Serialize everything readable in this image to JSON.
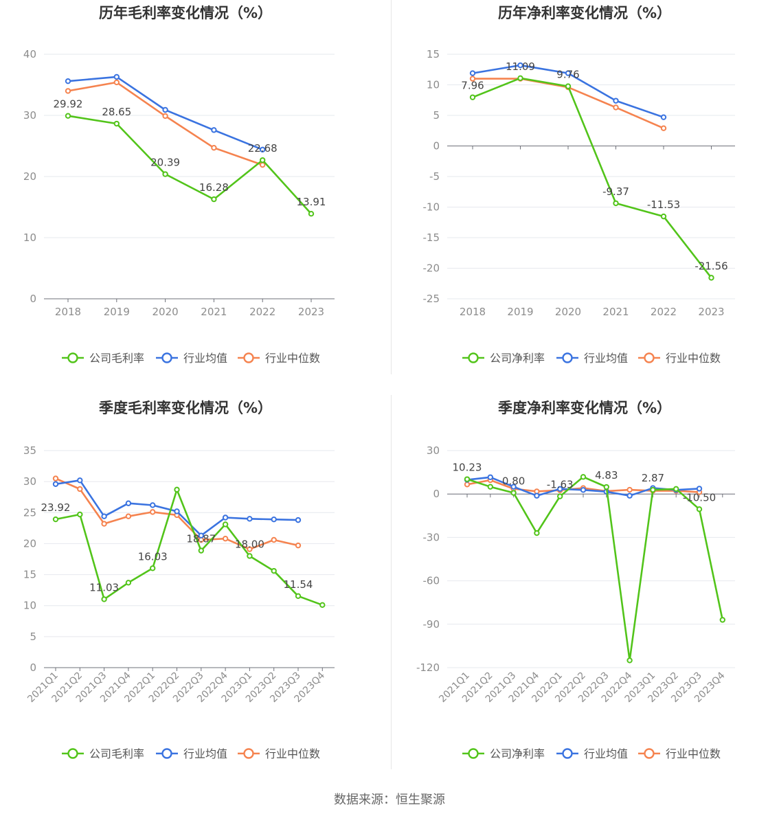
{
  "footer": {
    "source": "数据来源：恒生聚源"
  },
  "colors": {
    "company": "#52c41a",
    "avg": "#3a73e0",
    "median": "#f5834f",
    "axis": "#8c8c8c",
    "grid": "#e6e8ee",
    "title": "#333333"
  },
  "chart_data": [
    {
      "type": "line",
      "title": "历年毛利率变化情况（%）",
      "categories": [
        "2018",
        "2019",
        "2020",
        "2021",
        "2022",
        "2023"
      ],
      "ylim": [
        0,
        40
      ],
      "yticks": [
        0,
        10,
        20,
        30,
        40
      ],
      "legend": [
        "公司毛利率",
        "行业均值",
        "行业中位数"
      ],
      "legend_position": "bottom",
      "series": [
        {
          "name": "公司毛利率",
          "values": [
            29.92,
            28.65,
            20.39,
            16.28,
            22.68,
            13.91
          ],
          "labels": [
            "29.92",
            "28.65",
            "20.39",
            "16.28",
            "22.68",
            "13.91"
          ]
        },
        {
          "name": "行业均值",
          "values": [
            35.6,
            36.3,
            30.9,
            27.6,
            24.4,
            null
          ]
        },
        {
          "name": "行业中位数",
          "values": [
            34.0,
            35.4,
            29.9,
            24.7,
            21.9,
            null
          ]
        }
      ]
    },
    {
      "type": "line",
      "title": "历年净利率变化情况（%）",
      "categories": [
        "2018",
        "2019",
        "2020",
        "2021",
        "2022",
        "2023"
      ],
      "ylim": [
        -25,
        15
      ],
      "yticks": [
        -25,
        -20,
        -15,
        -10,
        -5,
        0,
        5,
        10,
        15
      ],
      "legend": [
        "公司净利率",
        "行业均值",
        "行业中位数"
      ],
      "legend_position": "bottom",
      "series": [
        {
          "name": "公司净利率",
          "values": [
            7.96,
            11.09,
            9.76,
            -9.37,
            -11.53,
            -21.56
          ],
          "labels": [
            "7.96",
            "11.09",
            "9.76",
            "-9.37",
            "-11.53",
            "-21.56"
          ]
        },
        {
          "name": "行业均值",
          "values": [
            11.9,
            13.2,
            11.9,
            7.4,
            4.7,
            null
          ]
        },
        {
          "name": "行业中位数",
          "values": [
            11.0,
            11.0,
            9.6,
            6.3,
            2.9,
            null
          ]
        }
      ]
    },
    {
      "type": "line",
      "title": "季度毛利率变化情况（%）",
      "categories": [
        "2021Q1",
        "2021Q2",
        "2021Q3",
        "2021Q4",
        "2022Q1",
        "2022Q2",
        "2022Q3",
        "2022Q4",
        "2023Q1",
        "2023Q2",
        "2023Q3",
        "2023Q4"
      ],
      "ylim": [
        0,
        35
      ],
      "yticks": [
        0,
        5,
        10,
        15,
        20,
        25,
        30,
        35
      ],
      "legend": [
        "公司毛利率",
        "行业均值",
        "行业中位数"
      ],
      "legend_position": "bottom",
      "series": [
        {
          "name": "公司毛利率",
          "values": [
            23.92,
            24.7,
            11.03,
            13.7,
            16.03,
            28.7,
            18.87,
            23.1,
            18.0,
            15.6,
            11.54,
            10.1
          ],
          "labels": [
            "23.92",
            "",
            "11.03",
            "",
            "16.03",
            "",
            "18.87",
            "",
            "18.00",
            "",
            "11.54",
            ""
          ]
        },
        {
          "name": "行业均值",
          "values": [
            29.6,
            30.2,
            24.4,
            26.5,
            26.2,
            25.2,
            21.3,
            24.2,
            24.0,
            23.9,
            23.8,
            null
          ]
        },
        {
          "name": "行业中位数",
          "values": [
            30.5,
            28.8,
            23.2,
            24.4,
            25.1,
            24.6,
            20.6,
            20.8,
            19.1,
            20.6,
            19.7,
            null
          ]
        }
      ]
    },
    {
      "type": "line",
      "title": "季度净利率变化情况（%）",
      "categories": [
        "2021Q1",
        "2021Q2",
        "2021Q3",
        "2021Q4",
        "2022Q1",
        "2022Q2",
        "2022Q3",
        "2022Q4",
        "2023Q1",
        "2023Q2",
        "2023Q3",
        "2023Q4"
      ],
      "ylim": [
        -120,
        30
      ],
      "yticks": [
        -120,
        -90,
        -60,
        -30,
        0,
        30
      ],
      "legend": [
        "公司净利率",
        "行业均值",
        "行业中位数"
      ],
      "legend_position": "bottom",
      "series": [
        {
          "name": "公司净利率",
          "values": [
            10.23,
            5.0,
            0.8,
            -27.0,
            -1.63,
            11.8,
            4.83,
            -115.0,
            2.87,
            3.5,
            -10.5,
            -87.0
          ],
          "labels": [
            "10.23",
            "",
            "0.80",
            "",
            "-1.63",
            "",
            "4.83",
            "",
            "2.87",
            "",
            "-10.50",
            ""
          ]
        },
        {
          "name": "行业均值",
          "values": [
            9.8,
            11.6,
            5.0,
            -1.2,
            3.5,
            2.8,
            1.6,
            -1.2,
            4.1,
            2.8,
            3.7,
            null
          ]
        },
        {
          "name": "行业中位数",
          "values": [
            6.6,
            9.6,
            3.6,
            1.8,
            2.6,
            4.1,
            2.0,
            2.9,
            2.2,
            2.2,
            1.3,
            null
          ]
        }
      ]
    }
  ]
}
